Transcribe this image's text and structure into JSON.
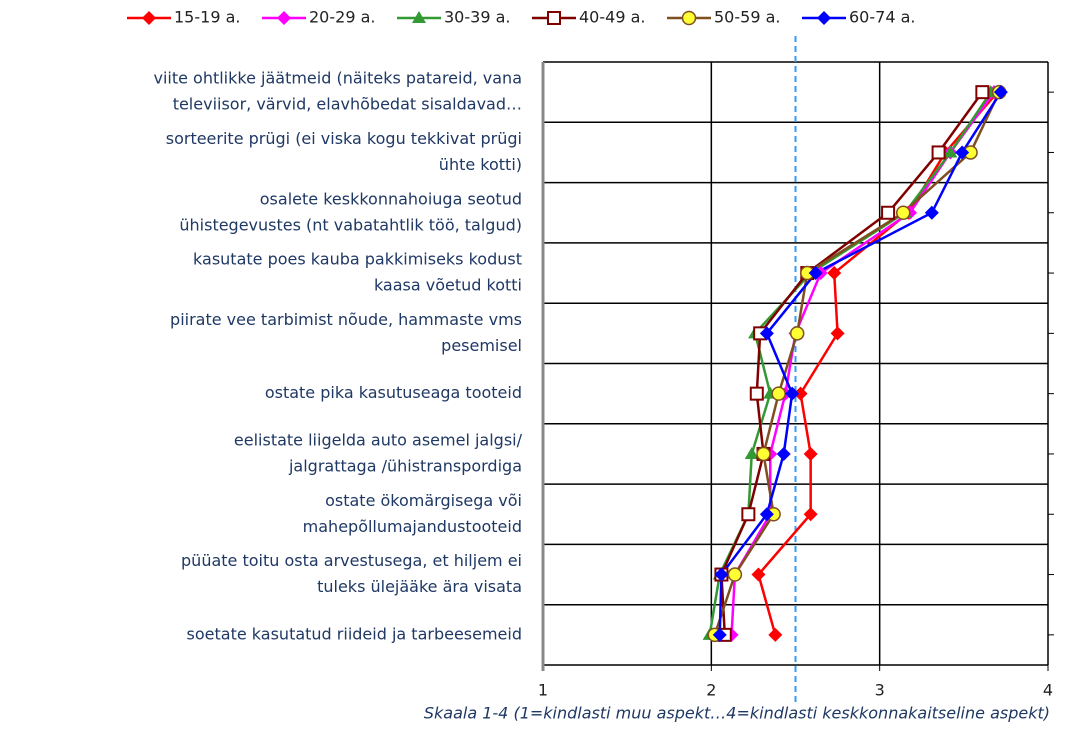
{
  "chart_data": {
    "type": "line",
    "orientation": "horizontal",
    "categories": [
      [
        "viite ohtlikke jäätmeid (näiteks patareid, vana",
        "televiisor, värvid, elavhõbedat sisaldavad…"
      ],
      [
        "sorteerite prügi (ei viska kogu tekkivat prügi",
        "ühte kotti)"
      ],
      [
        "osalete keskkonnahoiuga seotud",
        "ühistegevustes (nt vabatahtlik töö, talgud)"
      ],
      [
        "kasutate poes kauba pakkimiseks kodust",
        "kaasa võetud kotti"
      ],
      [
        "piirate vee tarbimist nõude, hammaste vms",
        "pesemisel"
      ],
      [
        "ostate pika kasutuseaga tooteid"
      ],
      [
        "eelistate liigelda auto asemel jalgsi/",
        "jalgrattaga /ühistranspordiga"
      ],
      [
        "ostate ökomärgisega või",
        "mahepõllumajandustooteid"
      ],
      [
        "püüate toitu osta arvestusega, et hiljem ei",
        "tuleks ülejääke ära visata"
      ],
      [
        "soetate kasutatud riideid ja tarbeesemeid"
      ]
    ],
    "series": [
      {
        "name": "15-19 a.",
        "color": "#ff0000",
        "marker": "diamond",
        "values": [
          3.7,
          3.39,
          3.17,
          2.73,
          2.75,
          2.53,
          2.59,
          2.59,
          2.28,
          2.38
        ]
      },
      {
        "name": "20-29 a.",
        "color": "#ff00ff",
        "marker": "diamond",
        "values": [
          3.68,
          3.42,
          3.18,
          2.65,
          2.5,
          2.44,
          2.35,
          2.35,
          2.14,
          2.12
        ]
      },
      {
        "name": "30-39 a.",
        "color": "#339933",
        "marker": "triangle",
        "values": [
          3.66,
          3.42,
          3.15,
          2.59,
          2.26,
          2.35,
          2.24,
          2.22,
          2.05,
          1.99
        ]
      },
      {
        "name": "40-49 a.",
        "color": "#800000",
        "marker": "square",
        "values": [
          3.61,
          3.35,
          3.05,
          2.57,
          2.29,
          2.27,
          2.31,
          2.22,
          2.06,
          2.08
        ]
      },
      {
        "name": "50-59 a.",
        "color": "#7f4f1f",
        "marker": "circle",
        "values": [
          3.71,
          3.54,
          3.14,
          2.57,
          2.51,
          2.4,
          2.31,
          2.37,
          2.14,
          2.02
        ]
      },
      {
        "name": "60-74 a.",
        "color": "#0000ff",
        "marker": "diamond",
        "values": [
          3.72,
          3.49,
          3.31,
          2.62,
          2.33,
          2.48,
          2.43,
          2.33,
          2.06,
          2.05
        ]
      }
    ],
    "xlim": [
      1,
      4
    ],
    "xticks": [
      1,
      2,
      3,
      4
    ],
    "x_label": "Skaala 1-4 (1=kindlasti muu aspekt…4=kindlasti keskkonnakaitseline aspekt)",
    "reference_line": 2.5,
    "legend": "top",
    "grid": true
  }
}
